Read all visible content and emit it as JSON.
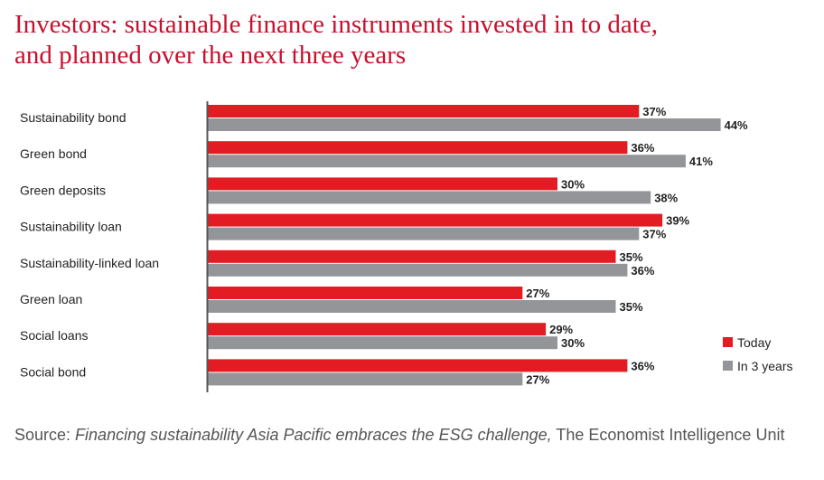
{
  "title": {
    "line1": "Investors: sustainable finance instruments invested in to date,",
    "line2": "and planned over the next three years"
  },
  "chart_data": {
    "type": "bar",
    "orientation": "horizontal",
    "categories": [
      "Sustainability bond",
      "Green bond",
      "Green deposits",
      "Sustainability loan",
      "Sustainability-linked loan",
      "Green loan",
      "Social loans",
      "Social bond"
    ],
    "series": [
      {
        "name": "Today",
        "color": "#e31b23",
        "values": [
          37,
          36,
          30,
          39,
          35,
          27,
          29,
          36
        ]
      },
      {
        "name": "In 3 years",
        "color": "#939598",
        "values": [
          44,
          41,
          38,
          37,
          36,
          35,
          30,
          27
        ]
      }
    ],
    "value_suffix": "%",
    "legend_position": "right",
    "grid": false
  },
  "source": {
    "prefix": "Source: ",
    "italic": "Financing sustainability Asia Pacific embraces the ESG challenge,",
    "suffix": " The Economist Intelligence Unit"
  }
}
